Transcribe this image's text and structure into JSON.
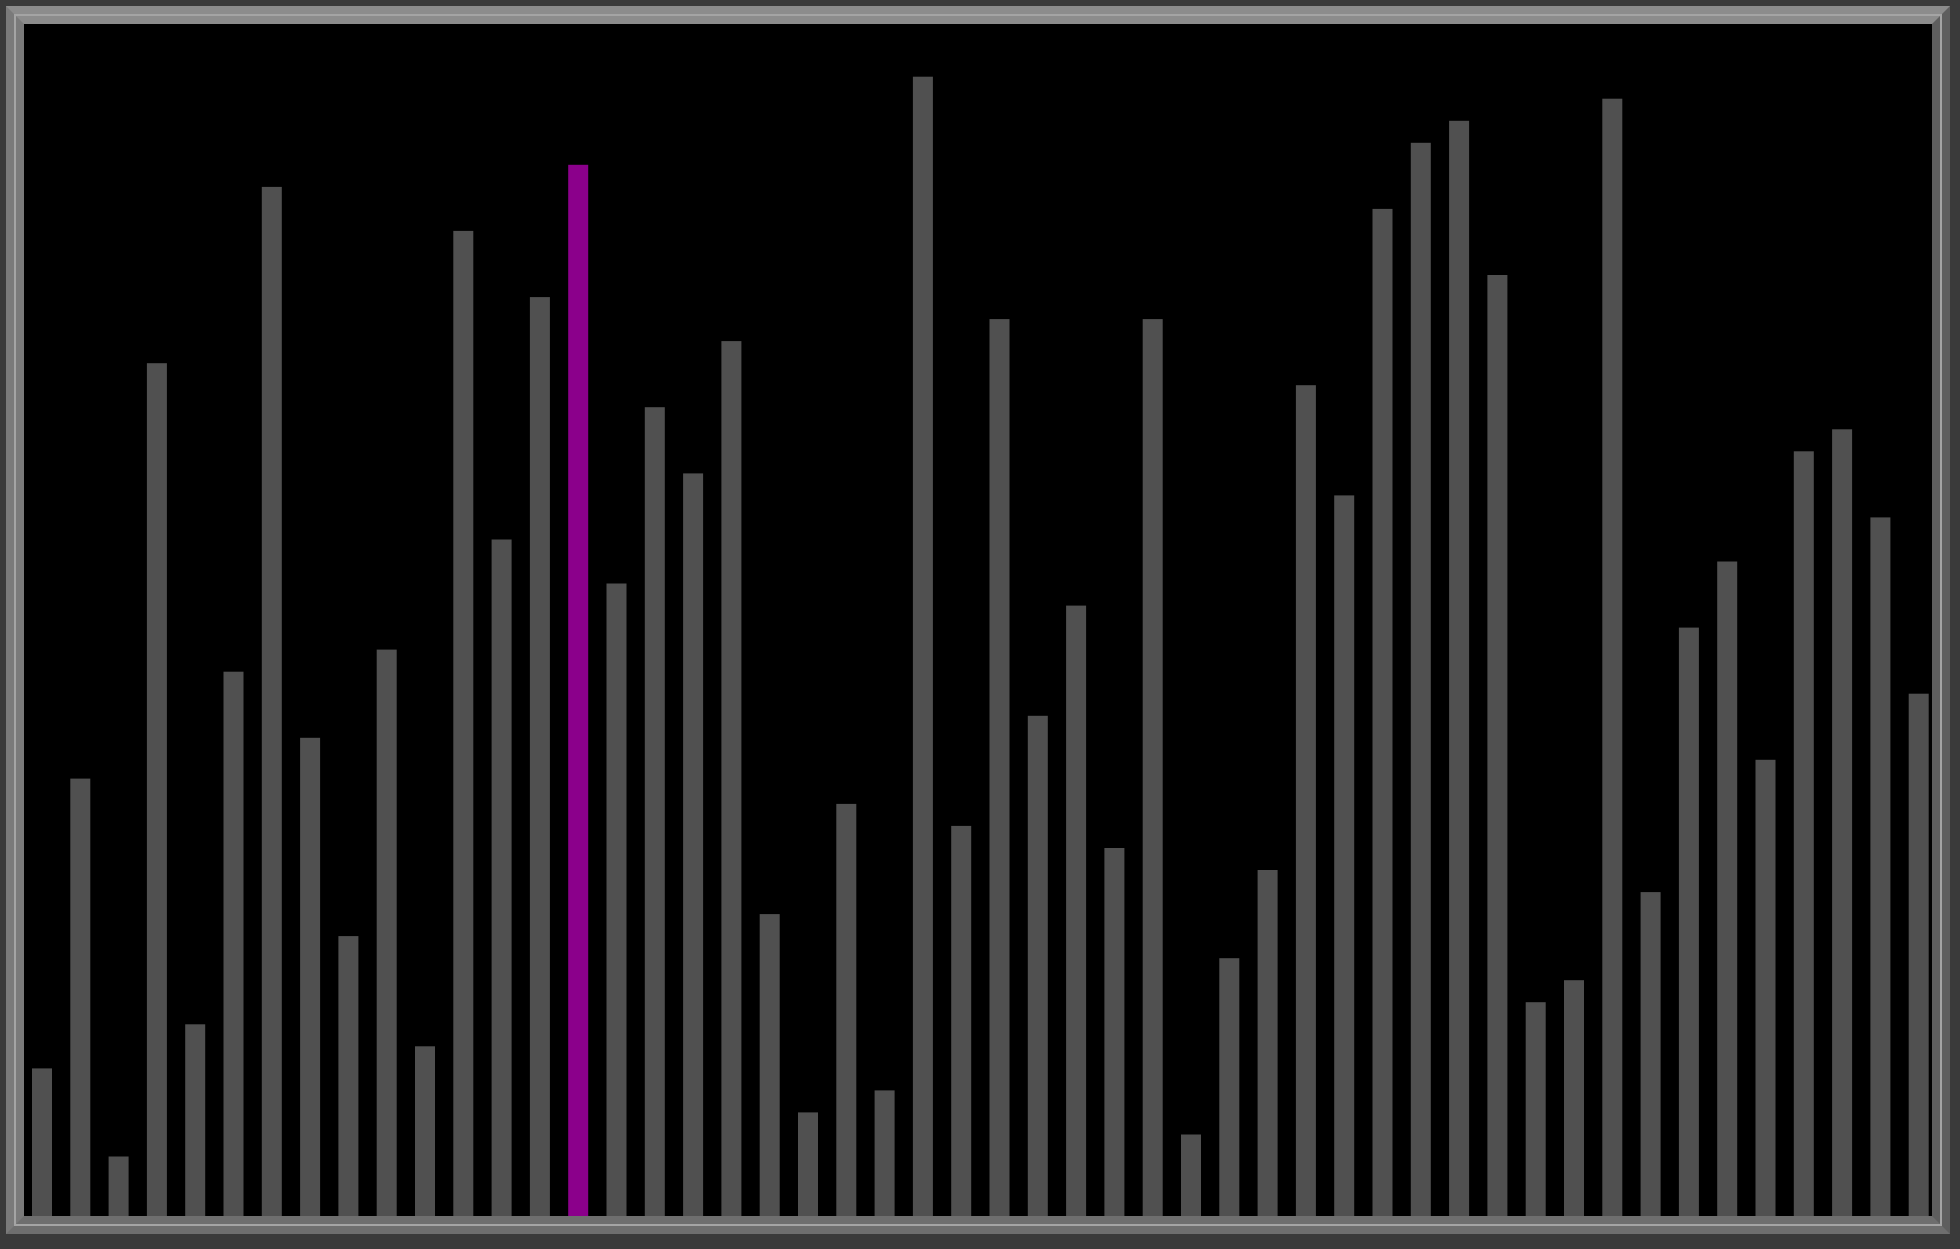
{
  "chart_data": {
    "type": "bar",
    "values": [
      134,
      397,
      54,
      774,
      174,
      494,
      934,
      434,
      254,
      514,
      154,
      894,
      614,
      834,
      954,
      574,
      734,
      674,
      794,
      274,
      94,
      374,
      114,
      1034,
      354,
      814,
      454,
      554,
      334,
      814,
      74,
      234,
      314,
      754,
      654,
      914,
      974,
      994,
      854,
      194,
      214,
      1014,
      294,
      534,
      594,
      414,
      694,
      714,
      634,
      474
    ],
    "highlight_index": 14,
    "ylim": [
      0,
      1080
    ],
    "grid": false,
    "legend": "none",
    "colors": {
      "bar": "#505050",
      "highlight": "#8b008b",
      "background": "#000000"
    }
  }
}
